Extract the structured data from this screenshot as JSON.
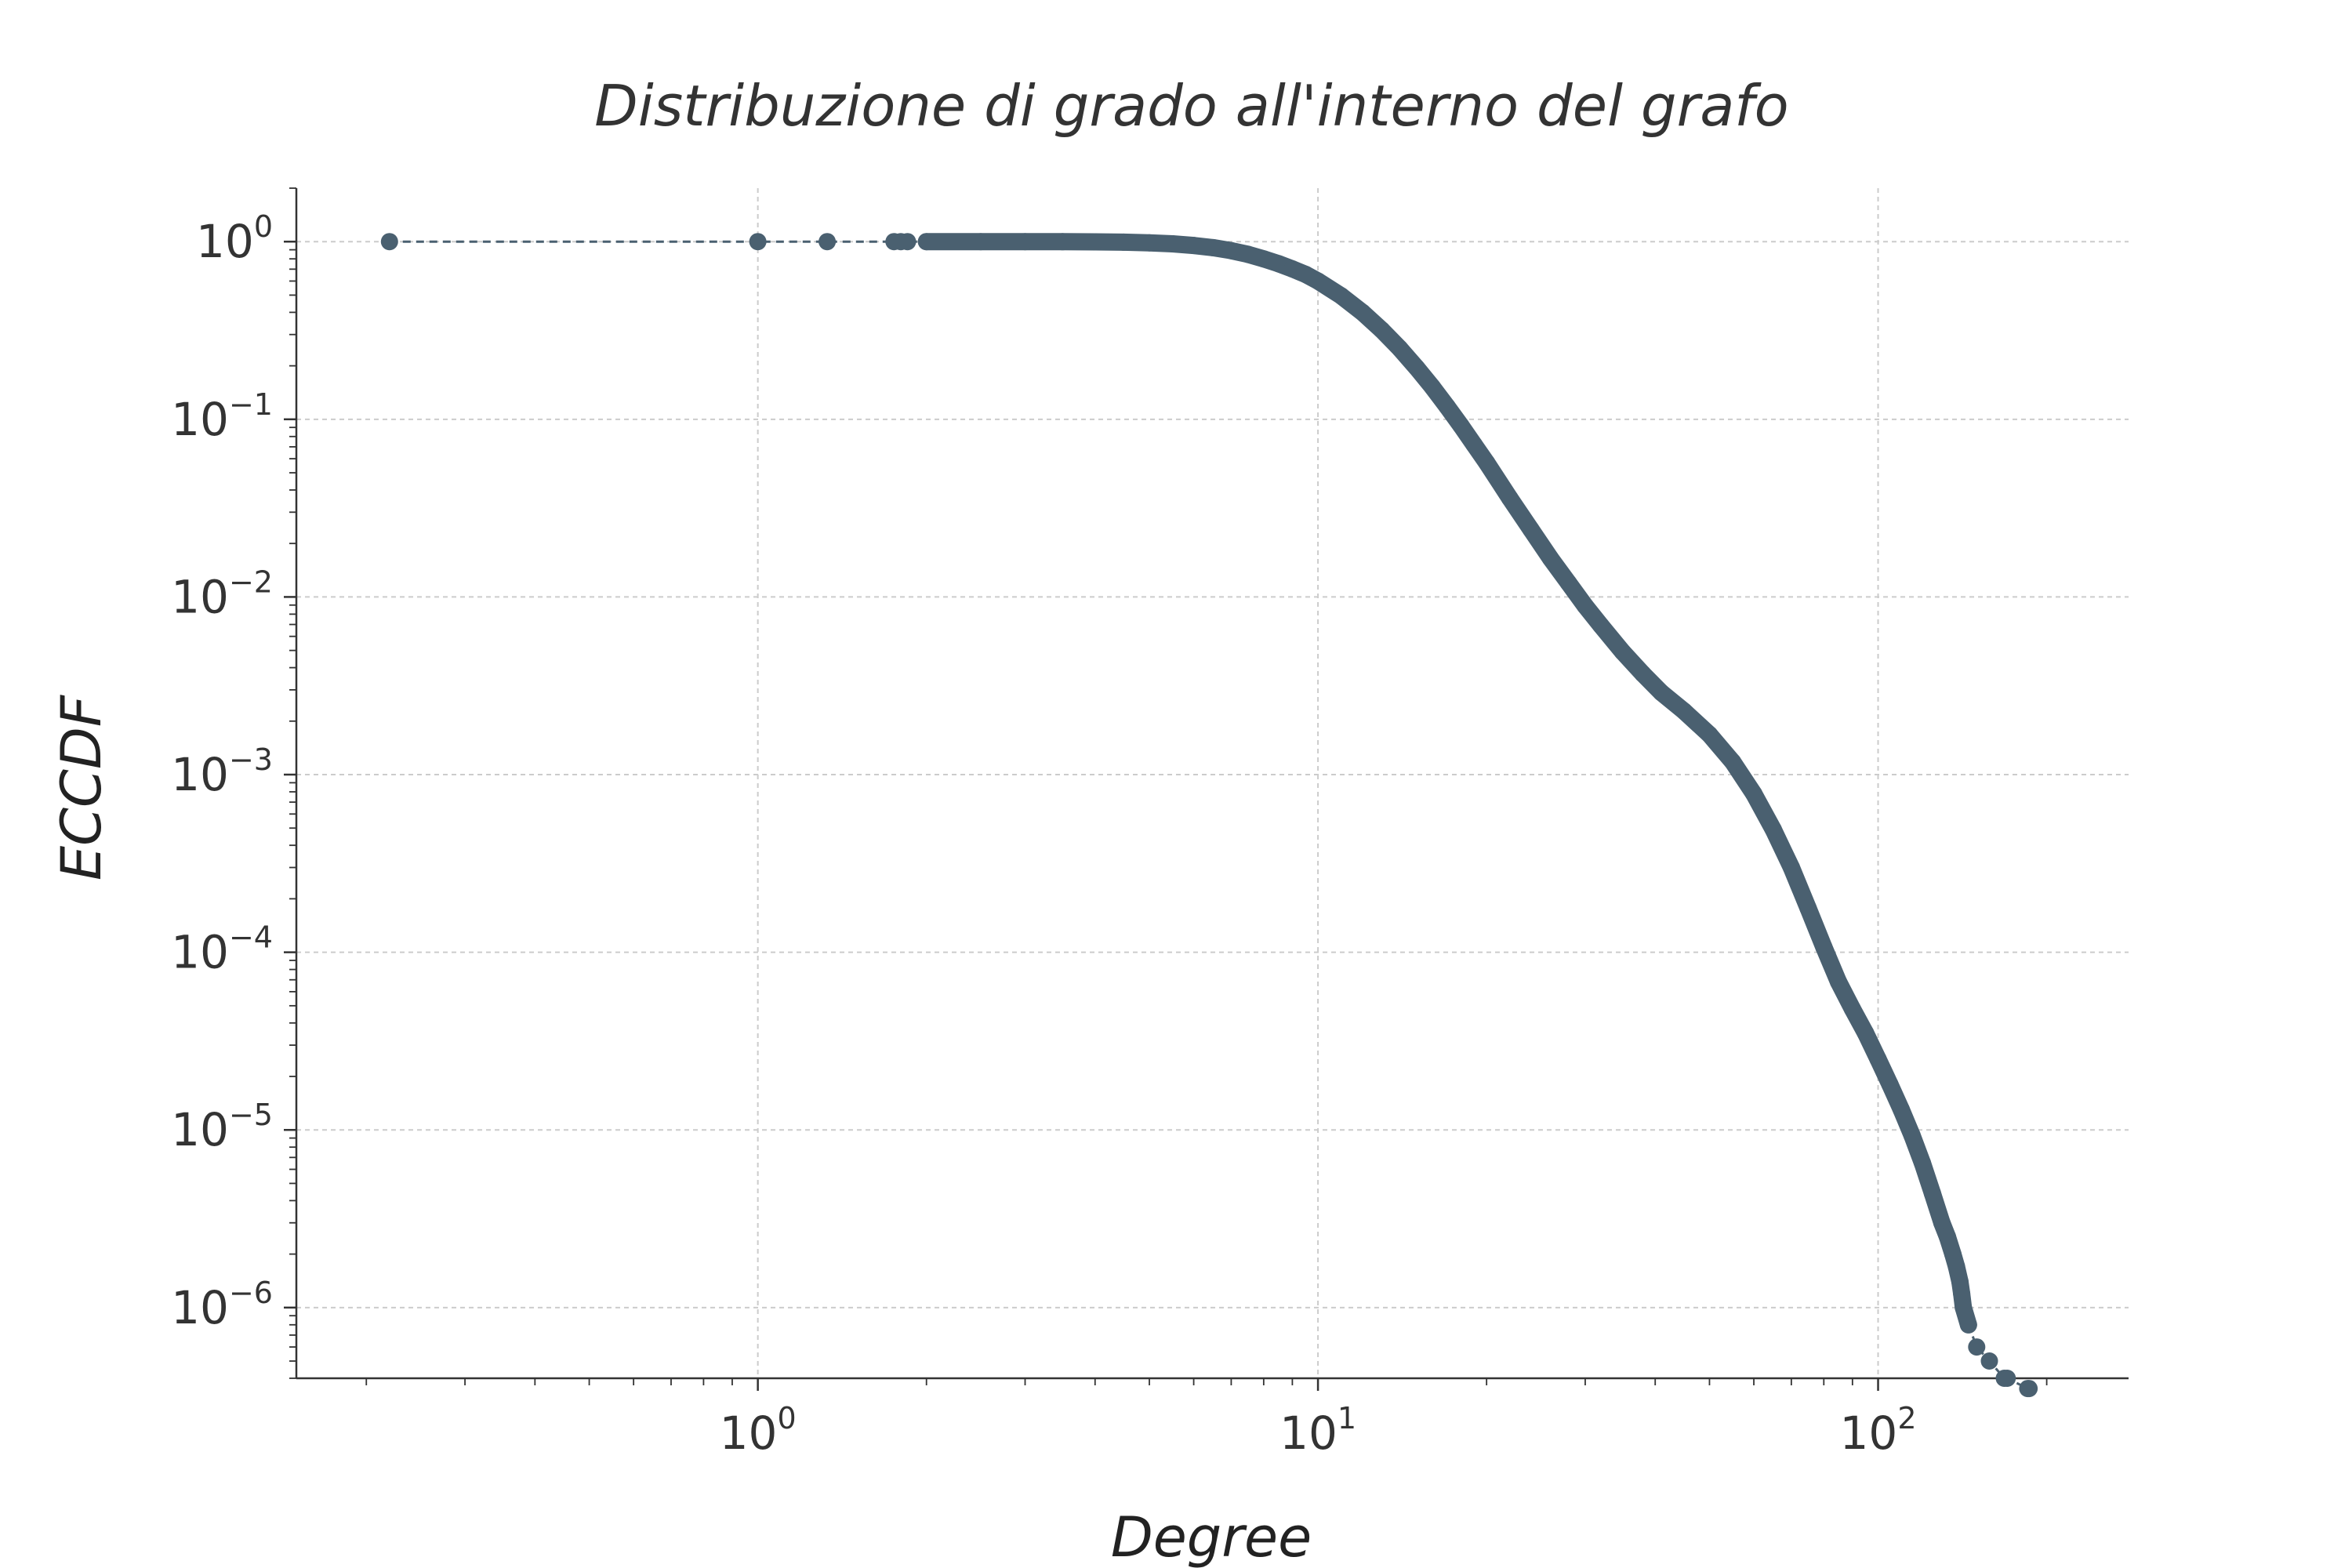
{
  "chart_data": {
    "type": "scatter",
    "title": "Distribuzione di grado all'interno del grafo",
    "xlabel": "Degree",
    "ylabel": "ECCDF",
    "xscale": "log",
    "yscale": "log",
    "xlim": [
      0.15,
      280
    ],
    "ylim": [
      4e-07,
      2
    ],
    "grid": true,
    "x_ticks": [
      {
        "value": 1,
        "base": "10",
        "exp": "0"
      },
      {
        "value": 10,
        "base": "10",
        "exp": "1"
      },
      {
        "value": 100,
        "base": "10",
        "exp": "2"
      }
    ],
    "y_ticks": [
      {
        "value": 1,
        "base": "10",
        "exp": "0"
      },
      {
        "value": 0.1,
        "base": "10",
        "exp": "−1"
      },
      {
        "value": 0.01,
        "base": "10",
        "exp": "−2"
      },
      {
        "value": 0.001,
        "base": "10",
        "exp": "−3"
      },
      {
        "value": 0.0001,
        "base": "10",
        "exp": "−4"
      },
      {
        "value": 1e-05,
        "base": "10",
        "exp": "−5"
      },
      {
        "value": 1e-06,
        "base": "10",
        "exp": "−6"
      }
    ],
    "series": [
      {
        "color": "#4a6070",
        "line_style": "dashed",
        "x": [
          0.22,
          1.0,
          1.33,
          1.75,
          1.8,
          1.85,
          2.0,
          2.5,
          3.0,
          3.5,
          4.0,
          4.5,
          5.0,
          5.5,
          6.0,
          6.5,
          7.0,
          7.5,
          8.0,
          8.5,
          9.0,
          9.5,
          10,
          11,
          12,
          13,
          14,
          15,
          16,
          17,
          18,
          19,
          20,
          22,
          24,
          26,
          28,
          30,
          32,
          35,
          38,
          41,
          45,
          50,
          55,
          60,
          65,
          70,
          75,
          80,
          85,
          90,
          95,
          100,
          105,
          110,
          115,
          120,
          125,
          130,
          133,
          136,
          138,
          140,
          141,
          142,
          145,
          150,
          158,
          168,
          170,
          185,
          186
        ],
        "y": [
          1.0,
          1.0,
          1.0,
          1.0,
          1.0,
          1.0,
          1.0,
          1.0,
          1.0,
          0.999,
          0.997,
          0.993,
          0.985,
          0.972,
          0.952,
          0.925,
          0.89,
          0.848,
          0.8,
          0.752,
          0.702,
          0.655,
          0.6,
          0.495,
          0.4,
          0.318,
          0.25,
          0.195,
          0.152,
          0.118,
          0.092,
          0.072,
          0.057,
          0.036,
          0.024,
          0.0165,
          0.012,
          0.0089,
          0.0069,
          0.0049,
          0.0037,
          0.0029,
          0.00228,
          0.00168,
          0.00118,
          0.00078,
          0.00049,
          0.0003,
          0.000177,
          0.000107,
          6.8e-05,
          4.8e-05,
          3.5e-05,
          2.5e-05,
          1.8e-05,
          1.3e-05,
          9.3e-06,
          6.5e-06,
          4.4e-06,
          3e-06,
          2.5e-06,
          2e-06,
          1.7e-06,
          1.4e-06,
          1.2e-06,
          1e-06,
          8e-07,
          6e-07,
          5e-07,
          4e-07,
          4e-07,
          3.5e-07,
          3.5e-07
        ]
      }
    ]
  }
}
